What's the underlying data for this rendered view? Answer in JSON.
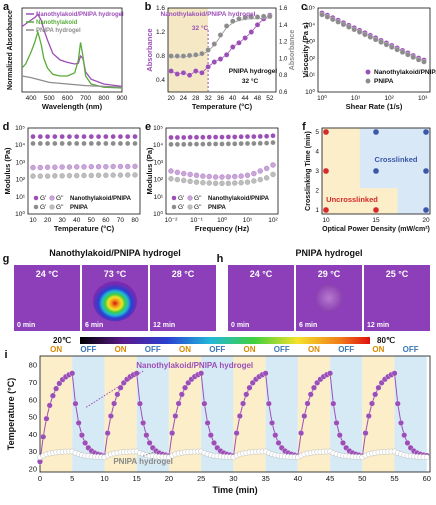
{
  "colors": {
    "purple": "#9b4fb6",
    "green": "#5aab3a",
    "gray": "#8c8c8c",
    "onBg": "#fbeec8",
    "offBg": "#d6eaf6",
    "red": "#d42a2a",
    "blue": "#3a57a8"
  },
  "panels": {
    "a": "a",
    "b": "b",
    "c": "c",
    "d": "d",
    "e": "e",
    "f": "f",
    "g": "g",
    "h": "h",
    "i": "i"
  },
  "chart_data": [
    {
      "id": "a",
      "type": "line",
      "xlabel": "Wavelength (nm)",
      "ylabel": "Normalized Absorbance",
      "xlim": [
        350,
        900
      ],
      "xticks": [
        "400",
        "500",
        "600",
        "700",
        "800",
        "900"
      ],
      "series": [
        {
          "name": "Nanothylakoid/PNIPA hydrogel",
          "x": [
            350,
            370,
            400,
            420,
            437,
            455,
            470,
            490,
            520,
            560,
            600,
            640,
            660,
            672,
            685,
            700,
            730,
            800,
            900
          ],
          "y": [
            0.82,
            0.85,
            0.9,
            0.93,
            0.97,
            0.9,
            0.78,
            0.65,
            0.48,
            0.4,
            0.37,
            0.35,
            0.36,
            0.45,
            0.42,
            0.25,
            0.16,
            0.1,
            0.07
          ]
        },
        {
          "name": "Nanothylakoid",
          "x": [
            350,
            370,
            400,
            420,
            437,
            455,
            470,
            490,
            520,
            560,
            600,
            640,
            660,
            672,
            685,
            700,
            730,
            800,
            900
          ],
          "y": [
            0.3,
            0.35,
            0.5,
            0.62,
            0.75,
            0.6,
            0.42,
            0.3,
            0.22,
            0.2,
            0.2,
            0.24,
            0.4,
            0.62,
            0.45,
            0.2,
            0.1,
            0.06,
            0.05
          ]
        },
        {
          "name": "PNIPA hydrogel",
          "x": [
            350,
            400,
            500,
            600,
            700,
            800,
            900
          ],
          "y": [
            0.2,
            0.18,
            0.12,
            0.1,
            0.08,
            0.07,
            0.06
          ]
        }
      ]
    },
    {
      "id": "b",
      "type": "scatter",
      "xlabel": "Temperature (°C)",
      "ylabel": "Absorbance",
      "y2label": "Absorbance",
      "xlim": [
        19,
        54
      ],
      "ylim": [
        0.2,
        1.6
      ],
      "y2lim": [
        0.6,
        1.6
      ],
      "xticks": [
        "20",
        "24",
        "28",
        "32",
        "36",
        "40",
        "44",
        "48",
        "52"
      ],
      "yticks": [
        "0.4",
        "0.8",
        "1.2",
        "1.6"
      ],
      "y2ticks": [
        "0.6",
        "0.8",
        "1.0",
        "1.2",
        "1.4",
        "1.6"
      ],
      "annotation": "Nanothylakoid/PNIPA hydrogel",
      "annotationTemp": "32 °C",
      "annotation2": "PNIPA hydrogel",
      "annotation2Temp": "32 °C",
      "series": [
        {
          "name": "Nanothylakoid/PNIPA hydrogel",
          "x": [
            20,
            22,
            24,
            26,
            28,
            30,
            32,
            34,
            36,
            38,
            40,
            42,
            44,
            46,
            48,
            50,
            52
          ],
          "y": [
            0.55,
            0.5,
            0.52,
            0.48,
            0.55,
            0.52,
            0.62,
            0.7,
            0.75,
            0.82,
            0.95,
            1.02,
            1.1,
            1.2,
            1.32,
            1.42,
            1.48
          ]
        },
        {
          "name": "PNIPA hydrogel",
          "x": [
            20,
            22,
            24,
            26,
            28,
            30,
            32,
            34,
            36,
            38,
            40,
            42,
            44,
            46,
            48,
            50,
            52
          ],
          "y": [
            0.8,
            0.8,
            0.8,
            0.81,
            0.82,
            0.84,
            0.9,
            1.0,
            1.15,
            1.3,
            1.38,
            1.42,
            1.44,
            1.45,
            1.45,
            1.46,
            1.46
          ]
        }
      ]
    },
    {
      "id": "c",
      "type": "scatter",
      "xlabel": "Shear Rate (1/s)",
      "ylabel": "Viscosity (Pa s)",
      "xticks": [
        "10⁰",
        "10¹",
        "10²",
        "10³"
      ],
      "yticks": [
        "10⁰",
        "10¹",
        "10²",
        "10³",
        "10⁴",
        "10⁵"
      ],
      "series": [
        {
          "name": "Nanothylakoid/PNIPA",
          "logx": [
            0,
            0.16,
            0.32,
            0.48,
            0.64,
            0.8,
            0.96,
            1.12,
            1.28,
            1.44,
            1.6,
            1.76,
            1.92,
            2.08,
            2.24,
            2.4,
            2.56,
            2.72,
            2.88,
            3.04
          ],
          "logy": [
            4.7,
            4.57,
            4.42,
            4.27,
            4.12,
            3.97,
            3.82,
            3.67,
            3.52,
            3.37,
            3.22,
            3.07,
            2.92,
            2.77,
            2.62,
            2.47,
            2.32,
            2.17,
            2.02,
            1.9
          ]
        },
        {
          "name": "PNIPA",
          "logx": [
            0,
            0.16,
            0.32,
            0.48,
            0.64,
            0.8,
            0.96,
            1.12,
            1.28,
            1.44,
            1.6,
            1.76,
            1.92,
            2.08,
            2.24,
            2.4,
            2.56,
            2.72,
            2.88,
            3.04
          ],
          "logy": [
            4.6,
            4.47,
            4.32,
            4.17,
            4.02,
            3.87,
            3.72,
            3.57,
            3.42,
            3.27,
            3.12,
            2.97,
            2.82,
            2.67,
            2.52,
            2.37,
            2.22,
            2.07,
            1.92,
            1.8
          ]
        }
      ]
    },
    {
      "id": "d",
      "type": "scatter",
      "xlabel": "Temperature (°C)",
      "ylabel": "Modulus (Pa)",
      "xticks": [
        "10",
        "20",
        "30",
        "40",
        "50",
        "60",
        "70",
        "80"
      ],
      "yticks": [
        "10⁰",
        "10¹",
        "10²",
        "10³",
        "10⁴",
        "10⁵"
      ],
      "legend": [
        "G'",
        "G''",
        "G'",
        "G''"
      ],
      "legendNames": [
        "Nanothylakoid/PNIPA",
        "PNIPA"
      ],
      "series": [
        {
          "name": "G' Nanothylakoid/PNIPA",
          "x": [
            10,
            15,
            20,
            25,
            30,
            35,
            40,
            45,
            50,
            55,
            60,
            65,
            70,
            75,
            80
          ],
          "logy": [
            4.5,
            4.5,
            4.5,
            4.5,
            4.5,
            4.5,
            4.5,
            4.5,
            4.5,
            4.5,
            4.5,
            4.5,
            4.5,
            4.5,
            4.5
          ]
        },
        {
          "name": "G' PNIPA",
          "x": [
            10,
            15,
            20,
            25,
            30,
            35,
            40,
            45,
            50,
            55,
            60,
            65,
            70,
            75,
            80
          ],
          "logy": [
            4.1,
            4.1,
            4.1,
            4.1,
            4.1,
            4.1,
            4.1,
            4.1,
            4.1,
            4.1,
            4.1,
            4.1,
            4.1,
            4.1,
            4.1
          ]
        },
        {
          "name": "G'' Nanothylakoid/PNIPA",
          "x": [
            10,
            15,
            20,
            25,
            30,
            35,
            40,
            45,
            50,
            55,
            60,
            65,
            70,
            75,
            80
          ],
          "logy": [
            2.7,
            2.7,
            2.72,
            2.72,
            2.73,
            2.73,
            2.74,
            2.74,
            2.75,
            2.75,
            2.75,
            2.76,
            2.76,
            2.76,
            2.77
          ]
        },
        {
          "name": "G'' PNIPA",
          "x": [
            10,
            15,
            20,
            25,
            30,
            35,
            40,
            45,
            50,
            55,
            60,
            65,
            70,
            75,
            80
          ],
          "logy": [
            2.2,
            2.2,
            2.2,
            2.22,
            2.22,
            2.23,
            2.23,
            2.24,
            2.24,
            2.25,
            2.25,
            2.26,
            2.26,
            2.27,
            2.27
          ]
        }
      ]
    },
    {
      "id": "e",
      "type": "scatter",
      "xlabel": "Frequency (Hz)",
      "ylabel": "Modulus (Pa)",
      "xticks": [
        "10⁻²",
        "10⁻¹",
        "10⁰",
        "10¹",
        "10²"
      ],
      "yticks": [
        "10⁰",
        "10¹",
        "10²",
        "10³",
        "10⁴",
        "10⁵"
      ],
      "legend": [
        "G'",
        "G''",
        "G'",
        "G''"
      ],
      "legendNames": [
        "Nanothylakoid/PNIPA",
        "PNIPA"
      ],
      "series": [
        {
          "name": "G' Nanothylakoid/PNIPA",
          "logx": [
            -2,
            -1.75,
            -1.5,
            -1.25,
            -1,
            -0.75,
            -0.5,
            -0.25,
            0,
            0.25,
            0.5,
            0.75,
            1,
            1.25,
            1.5,
            1.75,
            2
          ],
          "logy": [
            4.45,
            4.45,
            4.45,
            4.46,
            4.46,
            4.46,
            4.47,
            4.47,
            4.47,
            4.48,
            4.48,
            4.49,
            4.5,
            4.5,
            4.51,
            4.52,
            4.55
          ]
        },
        {
          "name": "G' PNIPA",
          "logx": [
            -2,
            -1.75,
            -1.5,
            -1.25,
            -1,
            -0.75,
            -0.5,
            -0.25,
            0,
            0.25,
            0.5,
            0.75,
            1,
            1.25,
            1.5,
            1.75,
            2
          ],
          "logy": [
            4.05,
            4.05,
            4.05,
            4.06,
            4.06,
            4.06,
            4.07,
            4.07,
            4.07,
            4.08,
            4.08,
            4.09,
            4.1,
            4.1,
            4.11,
            4.12,
            4.15
          ]
        },
        {
          "name": "G'' Nanothylakoid/PNIPA",
          "logx": [
            -2,
            -1.75,
            -1.5,
            -1.25,
            -1,
            -0.75,
            -0.5,
            -0.25,
            0,
            0.25,
            0.5,
            0.75,
            1,
            1.25,
            1.5,
            1.75,
            2
          ],
          "logy": [
            2.5,
            2.42,
            2.35,
            2.3,
            2.25,
            2.2,
            2.18,
            2.15,
            2.15,
            2.16,
            2.18,
            2.2,
            2.25,
            2.35,
            2.5,
            2.65,
            2.85
          ]
        },
        {
          "name": "G'' PNIPA",
          "logx": [
            -2,
            -1.75,
            -1.5,
            -1.25,
            -1,
            -0.75,
            -0.5,
            -0.25,
            0,
            0.25,
            0.5,
            0.75,
            1,
            1.25,
            1.5,
            1.75,
            2
          ],
          "logy": [
            2.05,
            2.0,
            1.95,
            1.9,
            1.85,
            1.82,
            1.8,
            1.78,
            1.78,
            1.78,
            1.8,
            1.82,
            1.85,
            1.92,
            2.0,
            2.1,
            2.3
          ]
        }
      ]
    },
    {
      "id": "f",
      "type": "scatter",
      "xlabel": "Optical Power Density (mW/cm²)",
      "ylabel": "Crosslinking Time (min)",
      "xticks": [
        "10",
        "15",
        "20"
      ],
      "yticks": [
        "1",
        "2",
        "3",
        "4",
        "5"
      ],
      "regionUncross": "Uncrosslinked",
      "regionCross": "Crosslinked",
      "points": [
        {
          "x": 10,
          "y": 5,
          "state": "uncrosslinked"
        },
        {
          "x": 10,
          "y": 3,
          "state": "uncrosslinked"
        },
        {
          "x": 10,
          "y": 1,
          "state": "uncrosslinked"
        },
        {
          "x": 15,
          "y": 1,
          "state": "uncrosslinked"
        },
        {
          "x": 15,
          "y": 3,
          "state": "crosslinked"
        },
        {
          "x": 15,
          "y": 5,
          "state": "crosslinked"
        },
        {
          "x": 20,
          "y": 5,
          "state": "crosslinked"
        },
        {
          "x": 20,
          "y": 3,
          "state": "crosslinked"
        },
        {
          "x": 20,
          "y": 1,
          "state": "crosslinked"
        }
      ]
    },
    {
      "id": "i",
      "type": "line",
      "xlabel": "Time (min)",
      "ylabel": "Temperature (°C)",
      "xticks": [
        "0",
        "5",
        "10",
        "15",
        "20",
        "25",
        "30",
        "35",
        "40",
        "45",
        "50",
        "55",
        "60"
      ],
      "yticks": [
        "20",
        "30",
        "40",
        "50",
        "60",
        "70",
        "80"
      ],
      "on": "ON",
      "off": "OFF",
      "series1": "Nanothylakoid/PNIPA hydrogel",
      "series2": "PNIPA hydrogel",
      "cycles": 6,
      "onMax": 75,
      "base": 28,
      "pnipaMax": 30
    }
  ],
  "thermal": {
    "g": {
      "title": "Nanothylakoid/PNIPA hydrogel",
      "temps": [
        "24 °C",
        "73 °C",
        "28 °C"
      ],
      "times": [
        "0 min",
        "6 min",
        "12 min"
      ]
    },
    "h": {
      "title": "PNIPA hydrogel",
      "temps": [
        "24 °C",
        "29 °C",
        "25 °C"
      ],
      "times": [
        "0 min",
        "6 min",
        "12 min"
      ]
    },
    "scaleMin": "20℃",
    "scaleMax": "80℃"
  }
}
